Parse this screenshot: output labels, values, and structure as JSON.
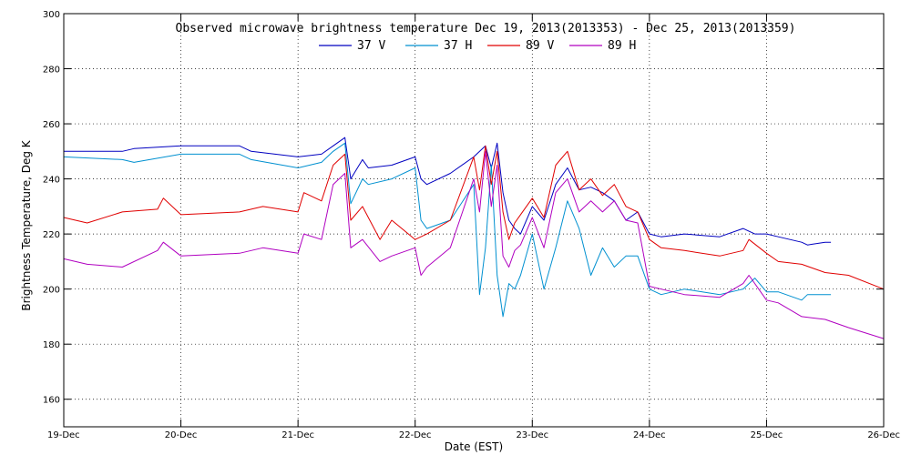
{
  "chart_data": {
    "type": "line",
    "title": "Observed microwave brightness temperature Dec 19, 2013(2013353) - Dec 25, 2013(2013359)",
    "xlabel": "Date (EST)",
    "ylabel": "Brightness Temperature, Deg K",
    "xlim": [
      0,
      7
    ],
    "ylim": [
      150,
      300
    ],
    "x_ticks": [
      {
        "x": 0,
        "label": "19-Dec"
      },
      {
        "x": 1,
        "label": "20-Dec"
      },
      {
        "x": 2,
        "label": "21-Dec"
      },
      {
        "x": 3,
        "label": "22-Dec"
      },
      {
        "x": 4,
        "label": "23-Dec"
      },
      {
        "x": 5,
        "label": "24-Dec"
      },
      {
        "x": 6,
        "label": "25-Dec"
      },
      {
        "x": 7,
        "label": "26-Dec"
      }
    ],
    "y_ticks": [
      160,
      180,
      200,
      220,
      240,
      260,
      280,
      300
    ],
    "grid": true,
    "legend_position": "top",
    "series": [
      {
        "name": "37 V",
        "color": "#0000c0",
        "x": [
          0,
          0.5,
          0.6,
          1.0,
          1.5,
          1.6,
          2.0,
          2.2,
          2.3,
          2.4,
          2.45,
          2.55,
          2.6,
          2.8,
          3.0,
          3.05,
          3.1,
          3.3,
          3.5,
          3.6,
          3.65,
          3.7,
          3.75,
          3.8,
          3.85,
          3.9,
          4.0,
          4.1,
          4.2,
          4.3,
          4.4,
          4.5,
          4.6,
          4.7,
          4.8,
          4.9,
          5.0,
          5.1,
          5.3,
          5.6,
          5.8,
          5.9,
          6.0,
          6.1,
          6.3,
          6.35,
          6.5,
          6.55
        ],
        "y": [
          250,
          250,
          251,
          252,
          252,
          250,
          248,
          249,
          252,
          255,
          240,
          247,
          244,
          245,
          248,
          240,
          238,
          242,
          248,
          252,
          244,
          253,
          235,
          225,
          222,
          220,
          230,
          225,
          238,
          244,
          236,
          237,
          235,
          232,
          225,
          228,
          220,
          219,
          220,
          219,
          222,
          220,
          220,
          219,
          217,
          216,
          217,
          217
        ]
      },
      {
        "name": "37 H",
        "color": "#0090d0",
        "x": [
          0,
          0.5,
          0.6,
          1.0,
          1.5,
          1.6,
          2.0,
          2.2,
          2.3,
          2.4,
          2.45,
          2.55,
          2.6,
          2.8,
          3.0,
          3.05,
          3.1,
          3.3,
          3.5,
          3.55,
          3.6,
          3.65,
          3.7,
          3.75,
          3.8,
          3.85,
          3.9,
          4.0,
          4.1,
          4.2,
          4.3,
          4.4,
          4.5,
          4.6,
          4.7,
          4.8,
          4.9,
          5.0,
          5.1,
          5.3,
          5.6,
          5.8,
          5.9,
          6.0,
          6.1,
          6.3,
          6.35,
          6.5,
          6.55
        ],
        "y": [
          248,
          247,
          246,
          249,
          249,
          247,
          244,
          246,
          250,
          253,
          231,
          240,
          238,
          240,
          244,
          225,
          222,
          225,
          238,
          198,
          215,
          245,
          205,
          190,
          202,
          200,
          205,
          220,
          200,
          215,
          232,
          222,
          205,
          215,
          208,
          212,
          212,
          200,
          198,
          200,
          198,
          200,
          204,
          199,
          199,
          196,
          198,
          198,
          198
        ]
      },
      {
        "name": "89 V",
        "color": "#e00000",
        "x": [
          0,
          0.2,
          0.5,
          0.8,
          0.85,
          1.0,
          1.5,
          1.7,
          2.0,
          2.05,
          2.2,
          2.3,
          2.4,
          2.45,
          2.55,
          2.7,
          2.8,
          3.0,
          3.1,
          3.3,
          3.5,
          3.55,
          3.6,
          3.65,
          3.7,
          3.75,
          3.8,
          3.85,
          3.9,
          4.0,
          4.1,
          4.2,
          4.3,
          4.4,
          4.5,
          4.6,
          4.7,
          4.8,
          4.9,
          5.0,
          5.1,
          5.3,
          5.6,
          5.8,
          5.85,
          6.0,
          6.1,
          6.3,
          6.5,
          6.7,
          7.0
        ],
        "y": [
          226,
          224,
          228,
          229,
          233,
          227,
          228,
          230,
          228,
          235,
          232,
          245,
          249,
          225,
          230,
          218,
          225,
          218,
          220,
          225,
          248,
          236,
          252,
          238,
          250,
          228,
          218,
          224,
          227,
          233,
          226,
          245,
          250,
          236,
          240,
          234,
          238,
          230,
          228,
          218,
          215,
          214,
          212,
          214,
          218,
          213,
          210,
          209,
          206,
          205,
          200
        ]
      },
      {
        "name": "89 H",
        "color": "#b000c0",
        "x": [
          0,
          0.2,
          0.5,
          0.8,
          0.85,
          1.0,
          1.5,
          1.7,
          2.0,
          2.05,
          2.2,
          2.3,
          2.4,
          2.45,
          2.55,
          2.7,
          2.8,
          3.0,
          3.05,
          3.1,
          3.3,
          3.5,
          3.55,
          3.6,
          3.65,
          3.7,
          3.75,
          3.8,
          3.85,
          3.9,
          4.0,
          4.1,
          4.2,
          4.3,
          4.4,
          4.5,
          4.6,
          4.7,
          4.8,
          4.9,
          5.0,
          5.1,
          5.3,
          5.6,
          5.8,
          5.85,
          6.0,
          6.1,
          6.3,
          6.5,
          6.7,
          7.0
        ],
        "y": [
          211,
          209,
          208,
          214,
          217,
          212,
          213,
          215,
          213,
          220,
          218,
          238,
          242,
          215,
          218,
          210,
          212,
          215,
          205,
          208,
          215,
          240,
          228,
          250,
          230,
          245,
          212,
          208,
          214,
          216,
          226,
          215,
          235,
          240,
          228,
          232,
          228,
          232,
          225,
          224,
          201,
          200,
          198,
          197,
          202,
          205,
          196,
          195,
          190,
          189,
          186,
          182
        ]
      }
    ]
  }
}
